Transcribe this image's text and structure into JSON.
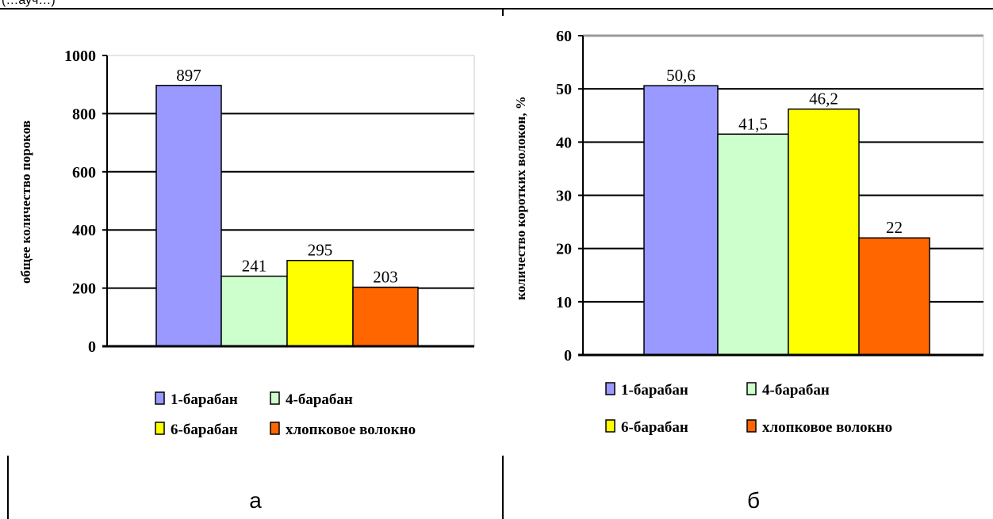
{
  "top_caption": "(…ауч…)",
  "panels": [
    {
      "sublabel": "а"
    },
    {
      "sublabel": "б"
    }
  ],
  "chart_data": [
    {
      "type": "bar",
      "categories": [
        "1-барабан",
        "4-барабан",
        "6-барабан",
        "хлопковое волокно"
      ],
      "values": [
        897,
        241,
        295,
        203
      ],
      "data_labels": [
        "897",
        "241",
        "295",
        "203"
      ],
      "colors": [
        "#9999FF",
        "#CCFFCC",
        "#FFFF00",
        "#FF6600"
      ],
      "ylabel": "общее количество пороков",
      "ylim": [
        0,
        1000
      ],
      "yticks": [
        "0",
        "200",
        "400",
        "600",
        "800",
        "1000"
      ],
      "grid": true,
      "legend_position": "bottom"
    },
    {
      "type": "bar",
      "categories": [
        "1-барабан",
        "4-барабан",
        "6-барабан",
        "хлопковое волокно"
      ],
      "values": [
        50.6,
        41.5,
        46.2,
        22
      ],
      "data_labels": [
        "50,6",
        "41,5",
        "46,2",
        "22"
      ],
      "colors": [
        "#9999FF",
        "#CCFFCC",
        "#FFFF00",
        "#FF6600"
      ],
      "ylabel": "количество коротких волокон, %",
      "ylim": [
        0,
        60
      ],
      "yticks": [
        "0",
        "10",
        "20",
        "30",
        "40",
        "50",
        "60"
      ],
      "grid": true,
      "legend_position": "bottom"
    }
  ]
}
